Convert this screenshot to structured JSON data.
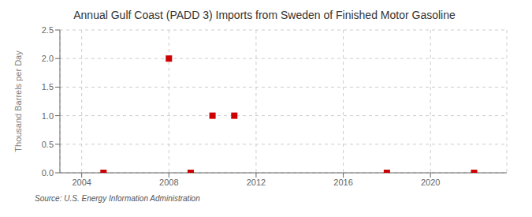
{
  "chart_data": {
    "type": "scatter",
    "title": "Annual Gulf Coast (PADD 3) Imports from Sweden of Finished Motor Gasoline",
    "ylabel": "Thousand Barrels per Day",
    "annotation": "Source: U.S. Energy Information Administration",
    "x": [
      2005,
      2008,
      2009,
      2010,
      2011,
      2018,
      2022
    ],
    "values": [
      0.0,
      2.0,
      0.0,
      1.0,
      1.0,
      0.0,
      0.0
    ],
    "color": "#cc0000",
    "marker": "square",
    "xlim": [
      2003.0,
      2023.5
    ],
    "xticks": [
      2004,
      2008,
      2012,
      2016,
      2020
    ],
    "ylim": [
      0.0,
      2.5
    ],
    "yticks": [
      {
        "value": 0.0,
        "label": "0.0"
      },
      0.5,
      {
        "value": 1.0,
        "label": "1.0"
      },
      1.5,
      {
        "value": 2.0,
        "label": "2.0"
      },
      2.5
    ],
    "grid": true
  }
}
